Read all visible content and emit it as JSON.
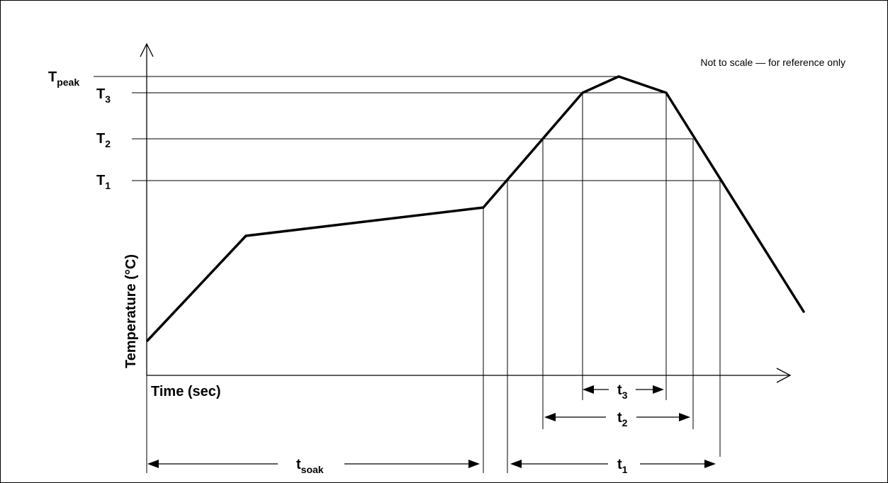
{
  "diagram": {
    "note": "Not to scale — for reference only",
    "axis": {
      "x_label": "Time (sec)",
      "y_label": "Temperature (°C)"
    },
    "temperature_levels": [
      {
        "id": "tpeak",
        "main": "T",
        "sub": "peak"
      },
      {
        "id": "t3",
        "main": "T",
        "sub": "3"
      },
      {
        "id": "t2",
        "main": "T",
        "sub": "2"
      },
      {
        "id": "t1",
        "main": "T",
        "sub": "1"
      }
    ],
    "durations": [
      {
        "id": "tsoak",
        "main": "t",
        "sub": "soak"
      },
      {
        "id": "t1",
        "main": "t",
        "sub": "1"
      },
      {
        "id": "t2",
        "main": "t",
        "sub": "2"
      },
      {
        "id": "t3",
        "main": "t",
        "sub": "3"
      }
    ]
  }
}
